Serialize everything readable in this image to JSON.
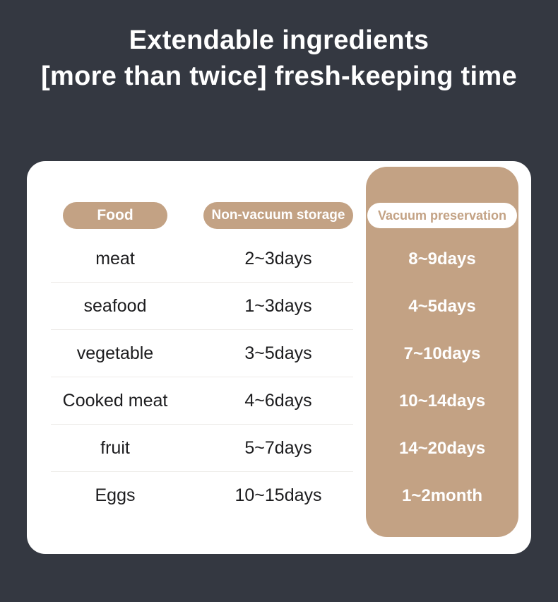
{
  "title": {
    "line1": "Extendable ingredients",
    "line2": "[more than twice] fresh-keeping time"
  },
  "table": {
    "headers": {
      "food": "Food",
      "non_vacuum": "Non-vacuum storage",
      "vacuum": "Vacuum preservation"
    },
    "rows": [
      {
        "food": "meat",
        "non_vacuum": "2~3days",
        "vacuum": "8~9days"
      },
      {
        "food": "seafood",
        "non_vacuum": "1~3days",
        "vacuum": "4~5days"
      },
      {
        "food": "vegetable",
        "non_vacuum": "3~5days",
        "vacuum": "7~10days"
      },
      {
        "food": "Cooked meat",
        "non_vacuum": "4~6days",
        "vacuum": "10~14days"
      },
      {
        "food": "fruit",
        "non_vacuum": "5~7days",
        "vacuum": "14~20days"
      },
      {
        "food": "Eggs",
        "non_vacuum": "10~15days",
        "vacuum": "1~2month"
      }
    ]
  },
  "colors": {
    "background": "#343841",
    "accent_tan": "#c3a284",
    "card": "#ffffff",
    "text_dark": "#1c1c1e",
    "text_white": "#ffffff"
  },
  "chart_data": {
    "type": "table",
    "title": "Extendable ingredients [more than twice] fresh-keeping time",
    "columns": [
      "Food",
      "Non-vacuum storage",
      "Vacuum preservation"
    ],
    "rows": [
      [
        "meat",
        "2~3days",
        "8~9days"
      ],
      [
        "seafood",
        "1~3days",
        "4~5days"
      ],
      [
        "vegetable",
        "3~5days",
        "7~10days"
      ],
      [
        "Cooked meat",
        "4~6days",
        "10~14days"
      ],
      [
        "fruit",
        "5~7days",
        "14~20days"
      ],
      [
        "Eggs",
        "10~15days",
        "1~2month"
      ]
    ],
    "layout": {
      "highlighted_column": "Vacuum preservation",
      "highlight_color": "#c3a284",
      "card_background": "#ffffff",
      "page_background": "#343841"
    }
  }
}
